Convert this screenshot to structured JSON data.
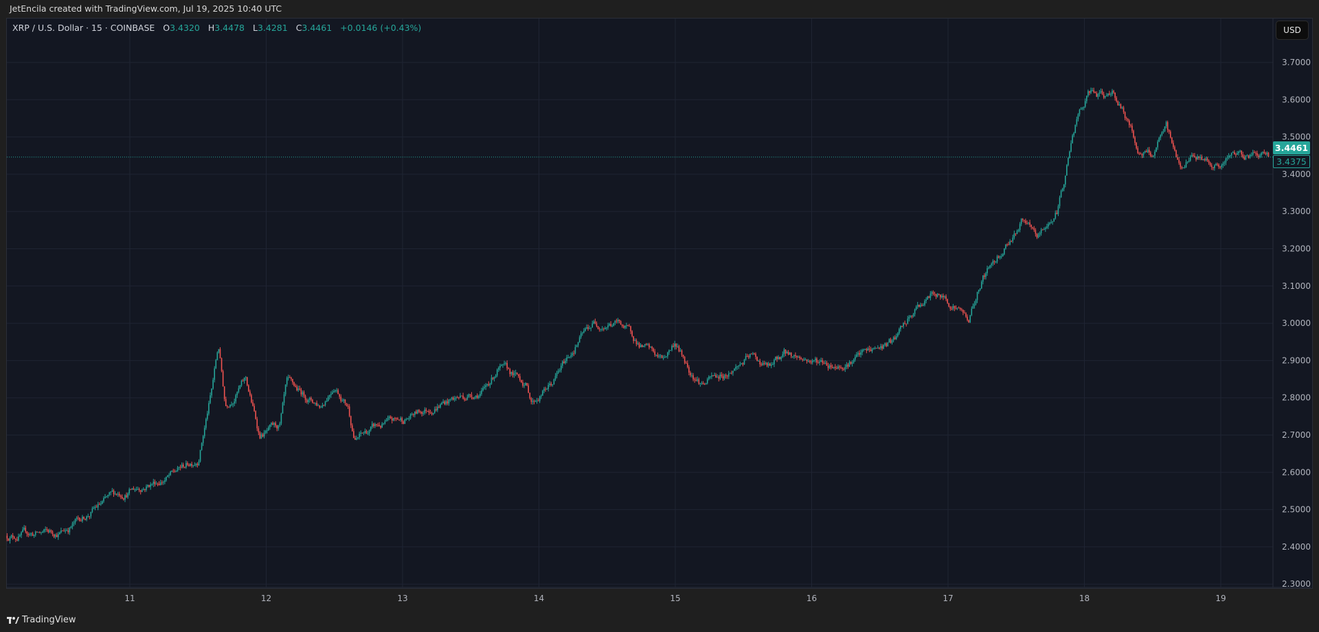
{
  "credit": "JetEncila created with TradingView.com, Jul 19, 2025 10:40 UTC",
  "legend": {
    "symbol": "XRP / U.S. Dollar · 15 · COINBASE",
    "o_label": "O",
    "o": "3.4320",
    "h_label": "H",
    "h": "3.4478",
    "l_label": "L",
    "l": "3.4281",
    "c_label": "C",
    "c": "3.4461",
    "change": "+0.0146 (+0.43%)"
  },
  "currency_button": "USD",
  "last_price_label": "3.4461",
  "second_price_label": "3.4375",
  "brand": "TradingView",
  "colors": {
    "up": "#26a69a",
    "down": "#ef5350",
    "background": "#131722",
    "grid": "#1f2433"
  },
  "chart_data": {
    "type": "candlestick",
    "interval": "15",
    "y_ticks": [
      "2.3000",
      "2.4000",
      "2.5000",
      "2.6000",
      "2.7000",
      "2.8000",
      "2.9000",
      "3.0000",
      "3.1000",
      "3.2000",
      "3.3000",
      "3.4000",
      "3.5000",
      "3.6000",
      "3.7000"
    ],
    "x_ticks": [
      "11",
      "12",
      "13",
      "14",
      "15",
      "16",
      "17",
      "18",
      "19"
    ],
    "ylim": [
      2.3,
      3.7
    ],
    "xlim_day": [
      10.1,
      19.4
    ],
    "grid": true,
    "last_price": 3.4461,
    "approx_price_path": [
      [
        10.1,
        2.43
      ],
      [
        10.5,
        2.44
      ],
      [
        10.9,
        2.54
      ],
      [
        11.3,
        2.59
      ],
      [
        11.5,
        2.64
      ],
      [
        11.6,
        2.82
      ],
      [
        11.65,
        2.94
      ],
      [
        11.7,
        2.78
      ],
      [
        11.85,
        2.85
      ],
      [
        11.95,
        2.7
      ],
      [
        12.1,
        2.72
      ],
      [
        12.15,
        2.83
      ],
      [
        12.4,
        2.78
      ],
      [
        12.5,
        2.84
      ],
      [
        12.6,
        2.78
      ],
      [
        12.65,
        2.69
      ],
      [
        12.8,
        2.72
      ],
      [
        13.0,
        2.74
      ],
      [
        13.3,
        2.79
      ],
      [
        13.6,
        2.82
      ],
      [
        13.7,
        2.88
      ],
      [
        13.9,
        2.84
      ],
      [
        13.95,
        2.79
      ],
      [
        14.1,
        2.84
      ],
      [
        14.3,
        2.96
      ],
      [
        14.4,
        3.0
      ],
      [
        14.6,
        3.0
      ],
      [
        14.75,
        2.94
      ],
      [
        14.9,
        2.9
      ],
      [
        15.0,
        2.95
      ],
      [
        15.1,
        2.88
      ],
      [
        15.2,
        2.84
      ],
      [
        15.4,
        2.87
      ],
      [
        15.55,
        2.91
      ],
      [
        15.7,
        2.88
      ],
      [
        15.8,
        2.92
      ],
      [
        16.0,
        2.9
      ],
      [
        16.2,
        2.89
      ],
      [
        16.4,
        2.92
      ],
      [
        16.6,
        2.95
      ],
      [
        16.8,
        3.05
      ],
      [
        16.9,
        3.08
      ],
      [
        17.05,
        3.05
      ],
      [
        17.15,
        3.01
      ],
      [
        17.25,
        3.12
      ],
      [
        17.4,
        3.2
      ],
      [
        17.55,
        3.28
      ],
      [
        17.65,
        3.22
      ],
      [
        17.8,
        3.3
      ],
      [
        17.85,
        3.38
      ],
      [
        17.9,
        3.48
      ],
      [
        17.95,
        3.55
      ],
      [
        18.05,
        3.62
      ],
      [
        18.15,
        3.6
      ],
      [
        18.2,
        3.63
      ],
      [
        18.3,
        3.56
      ],
      [
        18.4,
        3.46
      ],
      [
        18.5,
        3.45
      ],
      [
        18.6,
        3.52
      ],
      [
        18.7,
        3.42
      ],
      [
        18.8,
        3.45
      ],
      [
        18.9,
        3.44
      ],
      [
        19.0,
        3.42
      ],
      [
        19.1,
        3.45
      ],
      [
        19.3,
        3.46
      ],
      [
        19.36,
        3.4461
      ]
    ]
  }
}
